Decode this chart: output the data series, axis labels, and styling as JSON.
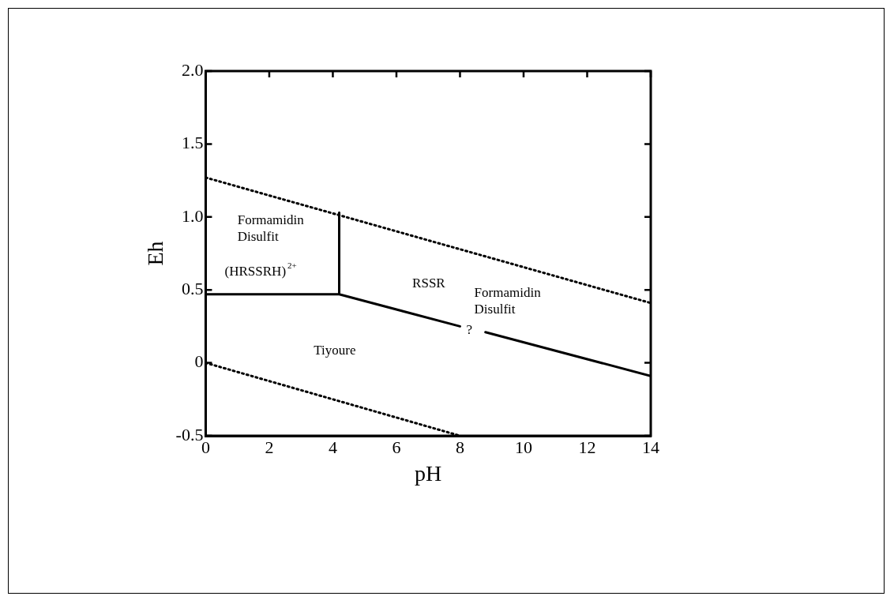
{
  "chart_data": {
    "type": "line",
    "xlabel": "pH",
    "ylabel": "Eh",
    "xlim": [
      0,
      14
    ],
    "xticks": [
      0,
      2,
      4,
      6,
      8,
      10,
      12,
      14
    ],
    "ylim": [
      -0.5,
      2
    ],
    "yticks": [
      {
        "value": -0.5,
        "label": "-0.5"
      },
      0,
      {
        "value": 0.5,
        "label": "0.5"
      },
      {
        "value": 1,
        "label": "1.0"
      },
      {
        "value": 1.5,
        "label": "1.5"
      },
      {
        "value": 2,
        "label": "2.0"
      }
    ],
    "marker": "none",
    "series": [
      {
        "color": "#000000",
        "line_style": "dotted",
        "x": [
          0,
          14
        ],
        "values": [
          1.27,
          0.41
        ]
      },
      {
        "color": "#000000",
        "line_style": "dotted",
        "x": [
          0,
          8
        ],
        "values": [
          0,
          -0.5
        ]
      },
      {
        "color": "#000000",
        "line_style": "solid",
        "x": [
          0,
          4.2,
          4.2,
          null,
          4.2,
          8.0,
          null,
          8.8,
          14
        ],
        "values": [
          0.47,
          0.47,
          1.03,
          null,
          0.47,
          0.25,
          null,
          0.21,
          -0.09
        ]
      }
    ],
    "annotations": [
      "Formamidin\nDisulfit",
      "(HRSSRH)$^{2+}$",
      "RSSR",
      "Formamidin\nDisulfit",
      "Tiyoure",
      "?"
    ]
  }
}
